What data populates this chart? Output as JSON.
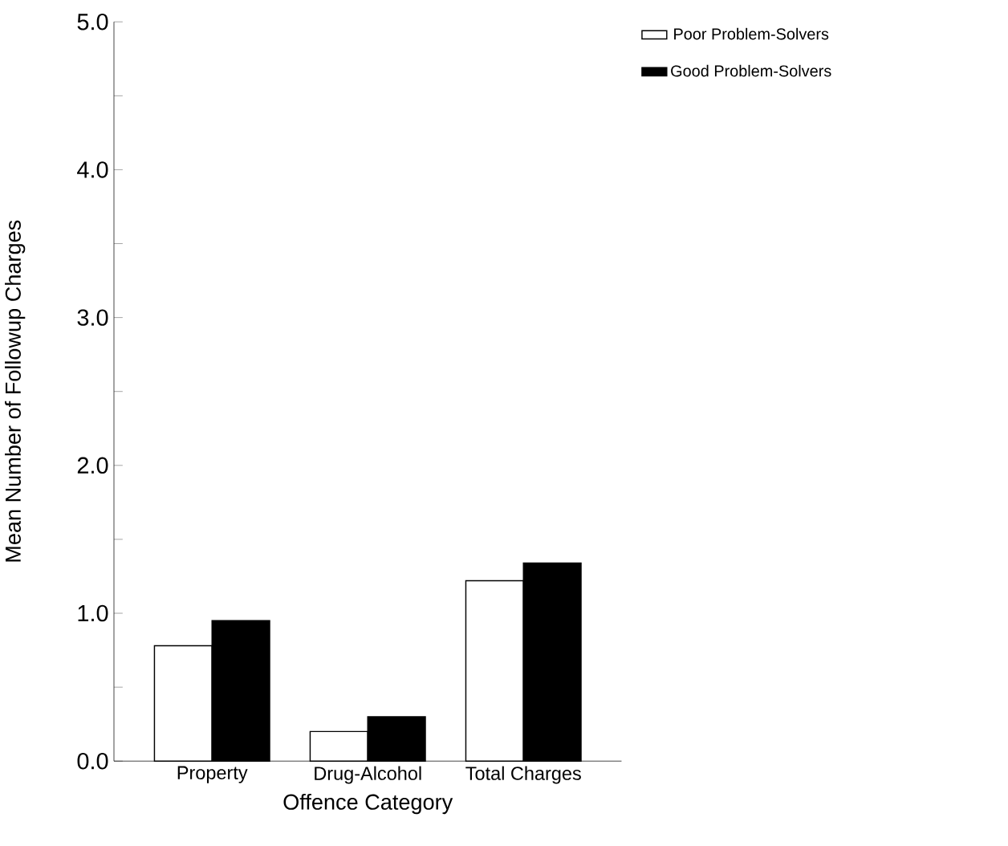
{
  "chart_data": {
    "type": "bar",
    "xlabel": "Offence Category",
    "ylabel": "Mean Number of Followup Charges",
    "categories": [
      "Property",
      "Drug-Alcohol",
      "Total Charges"
    ],
    "series": [
      {
        "name": "Poor Problem-Solvers",
        "color": "#ffffff",
        "values": [
          0.78,
          0.2,
          1.22
        ]
      },
      {
        "name": "Good Problem-Solvers",
        "color": "#000000",
        "values": [
          0.95,
          0.3,
          1.34
        ]
      }
    ],
    "ylim": [
      0,
      5
    ],
    "yticks": [
      {
        "value": 0,
        "label": "0.0"
      },
      {
        "value": 0.5,
        "label": null
      },
      {
        "value": 1,
        "label": "1.0"
      },
      {
        "value": 1.5,
        "label": null
      },
      {
        "value": 2,
        "label": "2.0"
      },
      {
        "value": 2.5,
        "label": null
      },
      {
        "value": 3,
        "label": "3.0"
      },
      {
        "value": 3.5,
        "label": null
      },
      {
        "value": 4,
        "label": "4.0"
      },
      {
        "value": 4.5,
        "label": null
      },
      {
        "value": 5,
        "label": "5.0"
      }
    ],
    "legend": "top right",
    "grid": false
  }
}
